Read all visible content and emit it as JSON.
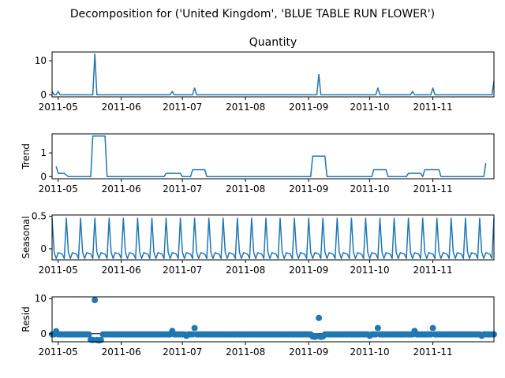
{
  "figure": {
    "suptitle": "Decomposition for ('United Kingdom', 'BLUE TABLE RUN FLOWER')"
  },
  "colors": {
    "series": "#1f77b4",
    "axis": "#000000",
    "background": "#ffffff"
  },
  "x_ticks": [
    "2011-05",
    "2011-06",
    "2011-07",
    "2011-08",
    "2011-09",
    "2011-10",
    "2011-11"
  ],
  "chart_data": [
    {
      "type": "line",
      "title": "Quantity",
      "ylabel": "",
      "xlim": [
        "2011-04-28",
        "2011-12-01"
      ],
      "ylim": [
        -0.6,
        12.6
      ],
      "yticks": [
        0,
        10
      ],
      "series": [
        {
          "x": [
            "2011-04-28",
            "2011-04-29",
            "2011-04-30",
            "2011-05-01",
            "2011-05-02",
            "2011-05-18",
            "2011-05-19",
            "2011-05-20",
            "2011-05-21",
            "2011-06-25",
            "2011-06-26",
            "2011-06-27",
            "2011-07-06",
            "2011-07-07",
            "2011-07-08",
            "2011-09-05",
            "2011-09-06",
            "2011-09-07",
            "2011-10-04",
            "2011-10-05",
            "2011-10-06",
            "2011-10-21",
            "2011-10-22",
            "2011-10-23",
            "2011-10-31",
            "2011-11-01",
            "2011-11-02",
            "2011-11-30",
            "2011-12-01"
          ],
          "y": [
            1,
            0,
            0,
            1,
            0,
            0,
            12,
            0,
            0,
            0,
            1,
            0,
            0,
            2,
            0,
            0,
            6,
            0,
            0,
            2,
            0,
            0,
            1,
            0,
            0,
            2,
            0,
            0,
            4
          ]
        }
      ]
    },
    {
      "type": "line",
      "title": "",
      "ylabel": "Trend",
      "xlim": [
        "2011-04-28",
        "2011-12-01"
      ],
      "ylim": [
        -0.09,
        1.8
      ],
      "yticks": [
        0,
        1
      ],
      "series": [
        {
          "x": [
            "2011-04-30",
            "2011-05-01",
            "2011-05-04",
            "2011-05-06",
            "2011-05-17",
            "2011-05-18",
            "2011-05-24",
            "2011-05-25",
            "2011-06-22",
            "2011-06-23",
            "2011-06-30",
            "2011-07-01",
            "2011-07-05",
            "2011-07-06",
            "2011-07-12",
            "2011-07-13",
            "2011-09-02",
            "2011-09-03",
            "2011-09-09",
            "2011-09-10",
            "2011-10-02",
            "2011-10-03",
            "2011-10-09",
            "2011-10-10",
            "2011-10-19",
            "2011-10-20",
            "2011-10-26",
            "2011-10-27",
            "2011-10-28",
            "2011-10-29",
            "2011-11-04",
            "2011-11-05",
            "2011-11-26",
            "2011-11-27"
          ],
          "y": [
            0.43,
            0.14,
            0.14,
            0.0,
            0.0,
            1.71,
            1.71,
            0.0,
            0.0,
            0.14,
            0.14,
            0.0,
            0.0,
            0.29,
            0.29,
            0.0,
            0.0,
            0.86,
            0.86,
            0.0,
            0.0,
            0.29,
            0.29,
            0.0,
            0.0,
            0.14,
            0.14,
            0.0,
            0.29,
            0.29,
            0.29,
            0.0,
            0.0,
            0.57
          ]
        }
      ]
    },
    {
      "type": "line",
      "title": "",
      "ylabel": "Seasonal",
      "xlim": [
        "2011-04-28",
        "2011-12-01"
      ],
      "ylim": [
        -0.17,
        0.52
      ],
      "yticks": [
        0.0,
        0.5
      ],
      "period_days": 7,
      "first_peak": "2011-04-28",
      "weekly_pattern": [
        0.47,
        -0.05,
        -0.15,
        -0.06,
        -0.07,
        -0.08,
        -0.15
      ],
      "series": [
        {
          "name": "",
          "x_start": "2011-04-28",
          "x_end": "2011-12-01"
        }
      ]
    },
    {
      "type": "scatter",
      "title": "",
      "ylabel": "Resid",
      "xlim": [
        "2011-04-28",
        "2011-12-01"
      ],
      "ylim": [
        -2.3,
        10.5
      ],
      "yticks": [
        0,
        10
      ],
      "zero_line": true,
      "default_value": -0.2,
      "outliers": {
        "2011-04-30": 0.7,
        "2011-05-17": -1.7,
        "2011-05-18": -1.8,
        "2011-05-19": 9.6,
        "2011-05-20": -1.8,
        "2011-05-21": -1.9,
        "2011-05-22": -1.8,
        "2011-06-26": 0.8,
        "2011-07-03": -0.6,
        "2011-07-07": 1.6,
        "2011-09-03": -0.8,
        "2011-09-04": -0.9,
        "2011-09-05": -0.7,
        "2011-09-06": 4.5,
        "2011-09-07": -0.9,
        "2011-09-08": -0.8,
        "2011-10-01": -0.6,
        "2011-10-05": 1.6,
        "2011-10-23": 0.8,
        "2011-11-01": 1.6,
        "2011-11-25": -0.6
      },
      "series": [
        {
          "name": "",
          "x_start": "2011-04-28",
          "x_end": "2011-12-01"
        }
      ]
    }
  ]
}
